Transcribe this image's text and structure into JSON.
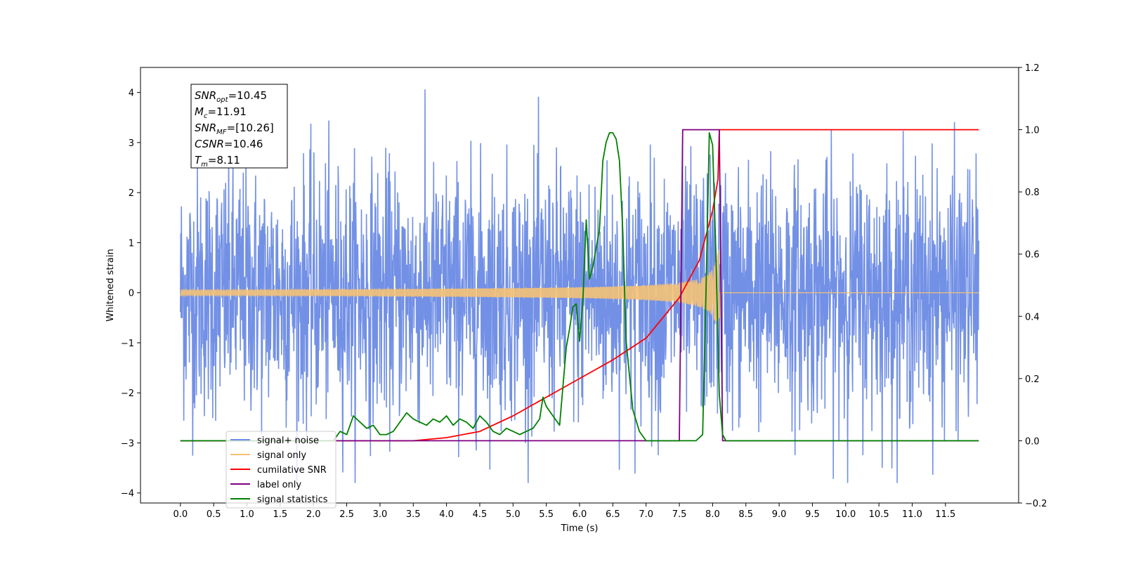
{
  "chart_data": {
    "type": "line",
    "title": "",
    "xlabel": "Time (s)",
    "ylabel": "Whitened strain",
    "y2label": "",
    "xlim": [
      -0.6,
      12.6
    ],
    "ylim": [
      -4.2,
      4.5
    ],
    "y2lim": [
      -0.2,
      1.2
    ],
    "x_ticks": [
      "0.0",
      "0.5",
      "1.0",
      "1.5",
      "2.0",
      "2.5",
      "3.0",
      "3.5",
      "4.0",
      "4.5",
      "5.0",
      "5.5",
      "6.0",
      "6.5",
      "7.0",
      "7.5",
      "8.0",
      "8.5",
      "9.0",
      "9.5",
      "10.0",
      "10.5",
      "11.0",
      "11.5"
    ],
    "y_ticks": [
      "−4",
      "−3",
      "−2",
      "−1",
      "0",
      "1",
      "2",
      "3",
      "4"
    ],
    "y2_ticks": [
      "−0.2",
      "0.0",
      "0.2",
      "0.4",
      "0.6",
      "0.8",
      "1.0",
      "1.2"
    ],
    "grid": false,
    "legend_position": "lower-left",
    "info_box": [
      {
        "base": "SNR",
        "sub": "opt",
        "value": "=10.45"
      },
      {
        "base": "M",
        "sub": "c",
        "value": "=11.91"
      },
      {
        "base": "SNR",
        "sub": "MF",
        "value": "=[10.26]"
      },
      {
        "base": "CSNR",
        "sub": "",
        "value": "=10.46"
      },
      {
        "base": "T",
        "sub": "m",
        "value": "=8.11"
      }
    ],
    "series": [
      {
        "name": "signal+ noise",
        "axis": "left",
        "color": "#6a8ae4",
        "kind": "noise",
        "x_range": [
          0.0,
          12.0
        ],
        "typical_band": [
          -2.0,
          2.0
        ],
        "extremes": [
          -3.8,
          4.1
        ]
      },
      {
        "name": "signal only",
        "axis": "left",
        "color": "#f5c276",
        "kind": "chirp",
        "x_range": [
          0.0,
          12.0
        ],
        "merger_time": 8.11,
        "peak_amplitude": 0.9
      },
      {
        "name": "cumilative SNR",
        "axis": "right",
        "color": "#ff0000",
        "x": [
          0.0,
          3.0,
          3.5,
          4.0,
          4.5,
          5.0,
          5.5,
          6.0,
          6.5,
          7.0,
          7.5,
          7.8,
          8.0,
          8.08,
          8.1,
          12.0
        ],
        "values": [
          0.0,
          0.0,
          0.0,
          0.01,
          0.03,
          0.08,
          0.14,
          0.2,
          0.26,
          0.33,
          0.46,
          0.58,
          0.74,
          0.84,
          1.0,
          1.0
        ]
      },
      {
        "name": "label only",
        "axis": "right",
        "color": "#800080",
        "x": [
          0.0,
          7.5,
          7.55,
          8.1,
          8.15,
          12.0
        ],
        "values": [
          0.0,
          0.0,
          1.0,
          1.0,
          0.0,
          0.0
        ]
      },
      {
        "name": "signal statistics",
        "axis": "right",
        "color": "#008000",
        "x": [
          0.0,
          2.3,
          2.4,
          2.5,
          2.6,
          2.7,
          2.8,
          2.9,
          3.0,
          3.1,
          3.2,
          3.3,
          3.4,
          3.5,
          3.6,
          3.7,
          3.8,
          3.9,
          4.0,
          4.1,
          4.2,
          4.3,
          4.4,
          4.5,
          4.6,
          4.7,
          4.8,
          4.9,
          5.0,
          5.1,
          5.2,
          5.3,
          5.4,
          5.45,
          5.5,
          5.6,
          5.7,
          5.8,
          5.85,
          5.9,
          5.95,
          6.0,
          6.05,
          6.1,
          6.15,
          6.2,
          6.3,
          6.35,
          6.4,
          6.45,
          6.5,
          6.55,
          6.6,
          6.65,
          6.7,
          6.8,
          6.9,
          7.0,
          7.2,
          7.4,
          7.6,
          7.75,
          7.85,
          7.9,
          7.95,
          8.0,
          8.05,
          8.1,
          8.15,
          8.2,
          12.0
        ],
        "values": [
          0.0,
          0.0,
          0.03,
          0.02,
          0.08,
          0.06,
          0.04,
          0.05,
          0.02,
          0.02,
          0.03,
          0.06,
          0.09,
          0.07,
          0.06,
          0.05,
          0.07,
          0.06,
          0.08,
          0.05,
          0.07,
          0.06,
          0.04,
          0.08,
          0.06,
          0.03,
          0.02,
          0.04,
          0.03,
          0.02,
          0.03,
          0.04,
          0.07,
          0.14,
          0.11,
          0.08,
          0.05,
          0.3,
          0.36,
          0.43,
          0.44,
          0.32,
          0.45,
          0.71,
          0.52,
          0.56,
          0.68,
          0.9,
          0.96,
          0.99,
          0.99,
          0.97,
          0.9,
          0.67,
          0.32,
          0.1,
          0.03,
          0.0,
          0.0,
          0.0,
          0.0,
          0.0,
          0.02,
          0.47,
          0.99,
          0.95,
          0.6,
          0.15,
          0.02,
          0.0,
          0.0
        ]
      }
    ]
  }
}
